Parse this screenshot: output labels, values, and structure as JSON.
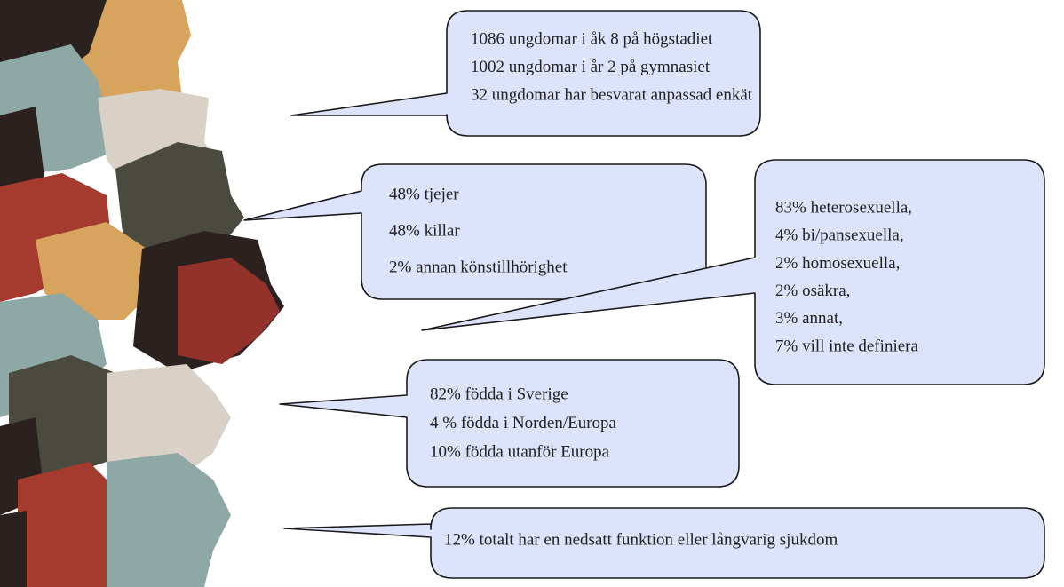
{
  "bubbles": [
    {
      "lines": [
        "1086 ungdomar i åk 8 på högstadiet",
        "1002 ungdomar i år 2 på gymnasiet",
        "32 ungdomar har besvarat anpassad enkät"
      ]
    },
    {
      "lines": [
        "48% tjejer",
        "48% killar",
        "2% annan könstillhörighet"
      ]
    },
    {
      "lines": [
        "83% heterosexuella,",
        "4% bi/pansexuella,",
        "2% homosexuella,",
        "2% osäkra,",
        "3% annat,",
        "7% vill inte definiera"
      ]
    },
    {
      "lines": [
        "82% födda i Sverige",
        "4 % födda i Norden/Europa",
        "10% födda utanför Europa"
      ]
    },
    {
      "lines": [
        "12% totalt har en nedsatt funktion eller långvarig sjukdom"
      ]
    }
  ]
}
